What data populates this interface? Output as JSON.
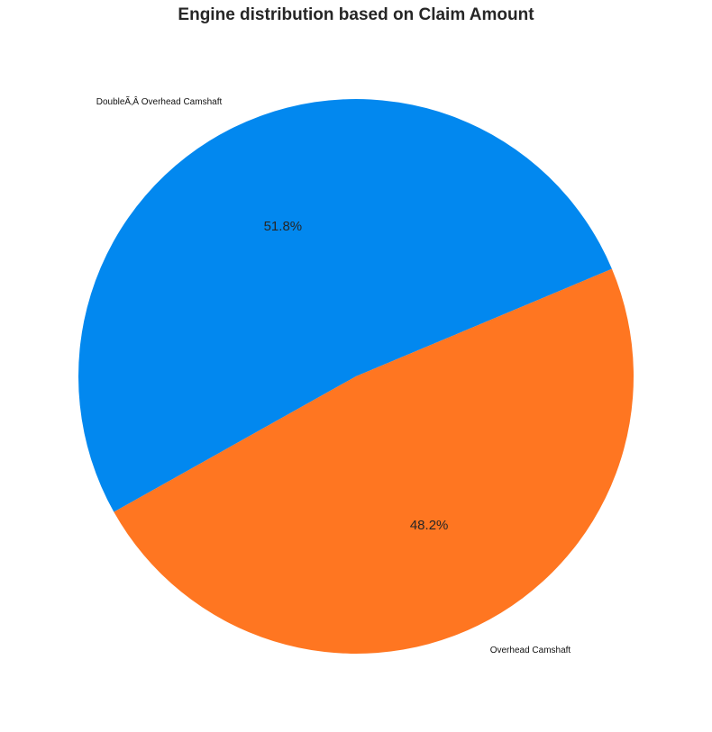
{
  "chart_data": {
    "type": "pie",
    "title": "Engine distribution based on Claim Amount",
    "categories": [
      "DoubleÃ‚Â Overhead Camshaft",
      "Overhead Camshaft"
    ],
    "values": [
      51.8,
      48.2
    ],
    "value_labels": [
      "51.8%",
      "48.2%"
    ],
    "colors": [
      "#0288EF",
      "#FF7621"
    ],
    "legend": "none"
  }
}
